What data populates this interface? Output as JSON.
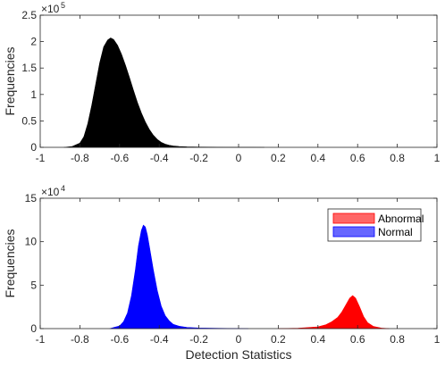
{
  "chart_data": [
    {
      "type": "area",
      "title": "",
      "xlabel": "",
      "ylabel": "Frequencies",
      "xlim": [
        -1,
        1
      ],
      "ylim": [
        0,
        250000
      ],
      "x_ticks": [
        -1,
        -0.8,
        -0.6,
        -0.4,
        -0.2,
        0,
        0.2,
        0.4,
        0.6,
        0.8,
        1
      ],
      "x_tick_labels": [
        "-1",
        "-0.8",
        "-0.6",
        "-0.4",
        "-0.2",
        "0",
        "0.2",
        "0.4",
        "0.6",
        "0.8",
        "1"
      ],
      "y_ticks": [
        0,
        50000,
        100000,
        150000,
        200000,
        250000
      ],
      "y_tick_labels": [
        "0",
        "0.5",
        "1",
        "1.5",
        "2",
        "2.5"
      ],
      "y_exponent_base": "×10",
      "y_exponent_power": "5",
      "grid": false,
      "legend": null,
      "series": [
        {
          "color": "#000000",
          "x": [
            -0.88,
            -0.84,
            -0.8,
            -0.78,
            -0.76,
            -0.74,
            -0.72,
            -0.7,
            -0.68,
            -0.66,
            -0.645,
            -0.63,
            -0.61,
            -0.59,
            -0.57,
            -0.55,
            -0.53,
            -0.51,
            -0.49,
            -0.47,
            -0.45,
            -0.43,
            -0.41,
            -0.39,
            -0.37,
            -0.35,
            -0.33,
            -0.3,
            -0.26,
            -0.2,
            -0.1,
            0.0,
            0.07,
            0.13
          ],
          "y": [
            0,
            1500,
            8000,
            20000,
            45000,
            80000,
            120000,
            160000,
            190000,
            203000,
            207000,
            204000,
            193000,
            176000,
            155000,
            132000,
            108000,
            85000,
            65000,
            48000,
            34000,
            23000,
            15000,
            9500,
            6000,
            4000,
            2600,
            1600,
            900,
            500,
            250,
            120,
            50,
            0
          ]
        }
      ]
    },
    {
      "type": "area",
      "title": "",
      "xlabel": "Detection Statistics",
      "ylabel": "Frequencies",
      "xlim": [
        -1,
        1
      ],
      "ylim": [
        0,
        150000
      ],
      "x_ticks": [
        -1,
        -0.8,
        -0.6,
        -0.4,
        -0.2,
        0,
        0.2,
        0.4,
        0.6,
        0.8,
        1
      ],
      "x_tick_labels": [
        "-1",
        "-0.8",
        "-0.6",
        "-0.4",
        "-0.2",
        "0",
        "0.2",
        "0.4",
        "0.6",
        "0.8",
        "1"
      ],
      "y_ticks": [
        0,
        50000,
        100000,
        150000
      ],
      "y_tick_labels": [
        "0",
        "5",
        "10",
        "15"
      ],
      "y_exponent_base": "×10",
      "y_exponent_power": "4",
      "grid": false,
      "legend": "top-right",
      "series": [
        {
          "name": "Abnormal",
          "color": "#ff0000",
          "x": [
            0.2,
            0.3,
            0.4,
            0.44,
            0.47,
            0.5,
            0.52,
            0.54,
            0.56,
            0.575,
            0.59,
            0.61,
            0.63,
            0.65,
            0.68,
            0.72,
            0.76
          ],
          "y": [
            0,
            400,
            2000,
            4500,
            8000,
            13000,
            19000,
            27000,
            35000,
            38000,
            35000,
            25000,
            14000,
            7000,
            2500,
            600,
            0
          ]
        },
        {
          "name": "Normal",
          "color": "#0000ff",
          "x": [
            -0.65,
            -0.6,
            -0.58,
            -0.56,
            -0.54,
            -0.52,
            -0.505,
            -0.49,
            -0.48,
            -0.47,
            -0.46,
            -0.45,
            -0.43,
            -0.41,
            -0.39,
            -0.37,
            -0.35,
            -0.33,
            -0.3,
            -0.26,
            -0.2,
            -0.1,
            0.0,
            0.05
          ],
          "y": [
            0,
            3000,
            8000,
            18000,
            38000,
            68000,
            95000,
            113000,
            119000,
            117000,
            108000,
            95000,
            68000,
            44000,
            26000,
            15000,
            9000,
            5000,
            2800,
            1400,
            700,
            300,
            100,
            0
          ]
        }
      ]
    }
  ]
}
